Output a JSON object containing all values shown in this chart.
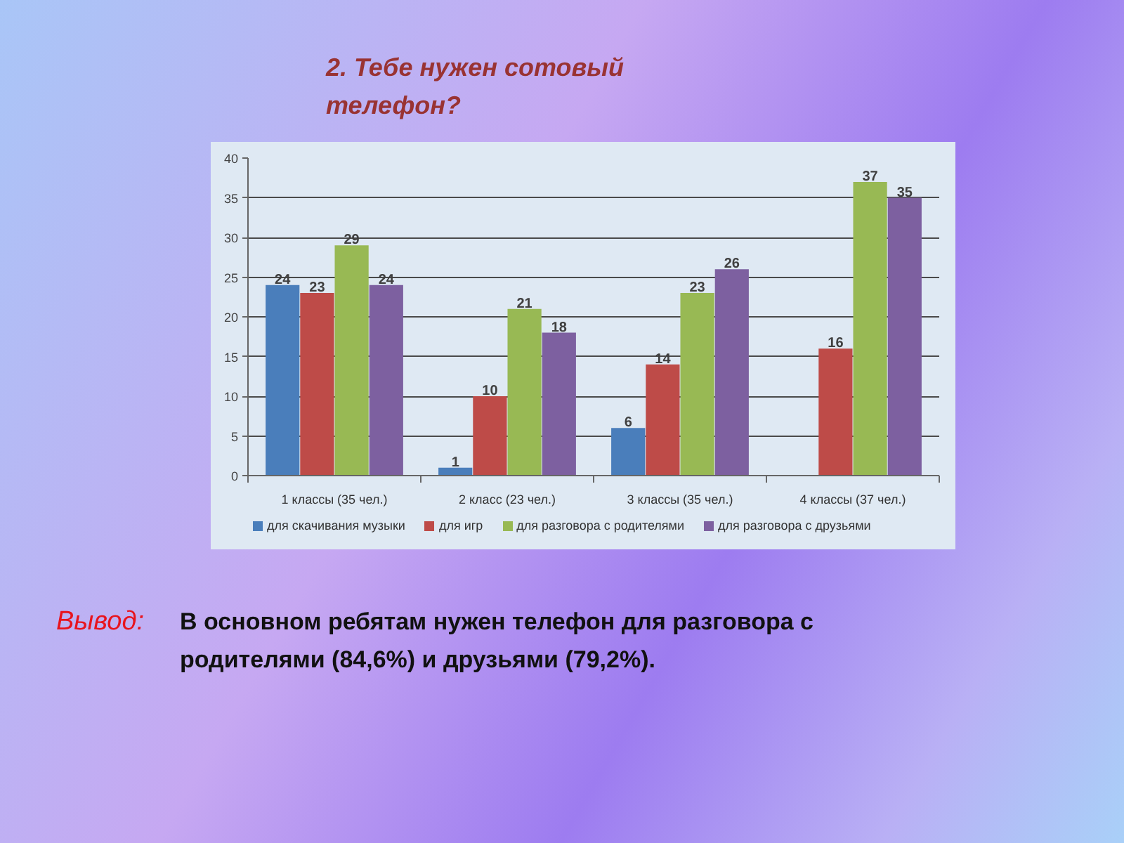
{
  "chart_data": {
    "type": "bar",
    "title": "2. Тебе нужен сотовый телефон?",
    "categories": [
      "1 классы (35 чел.)",
      "2 класс (23 чел.)",
      "3 классы (35 чел.)",
      "4 классы (37 чел.)"
    ],
    "series": [
      {
        "name": "для скачивания музыки",
        "color": "#4a7ebb",
        "values": [
          24,
          1,
          6,
          null
        ]
      },
      {
        "name": "для игр",
        "color": "#be4b48",
        "values": [
          23,
          10,
          14,
          16
        ]
      },
      {
        "name": "для разговора с родителями",
        "color": "#98b954",
        "values": [
          29,
          21,
          23,
          37
        ]
      },
      {
        "name": "для разговора с друзьями",
        "color": "#7d60a0",
        "values": [
          24,
          18,
          26,
          35
        ]
      }
    ],
    "ylim": [
      0,
      40
    ],
    "yticks": [
      0,
      5,
      10,
      15,
      20,
      25,
      30,
      35,
      40
    ],
    "grid": "y",
    "legend": "bottom",
    "data_labels": true,
    "annotations": [
      "Вывод:",
      "В основном ребятам нужен телефон для разговора с родителями (84,6%) и друзьями (79,2%)."
    ]
  }
}
